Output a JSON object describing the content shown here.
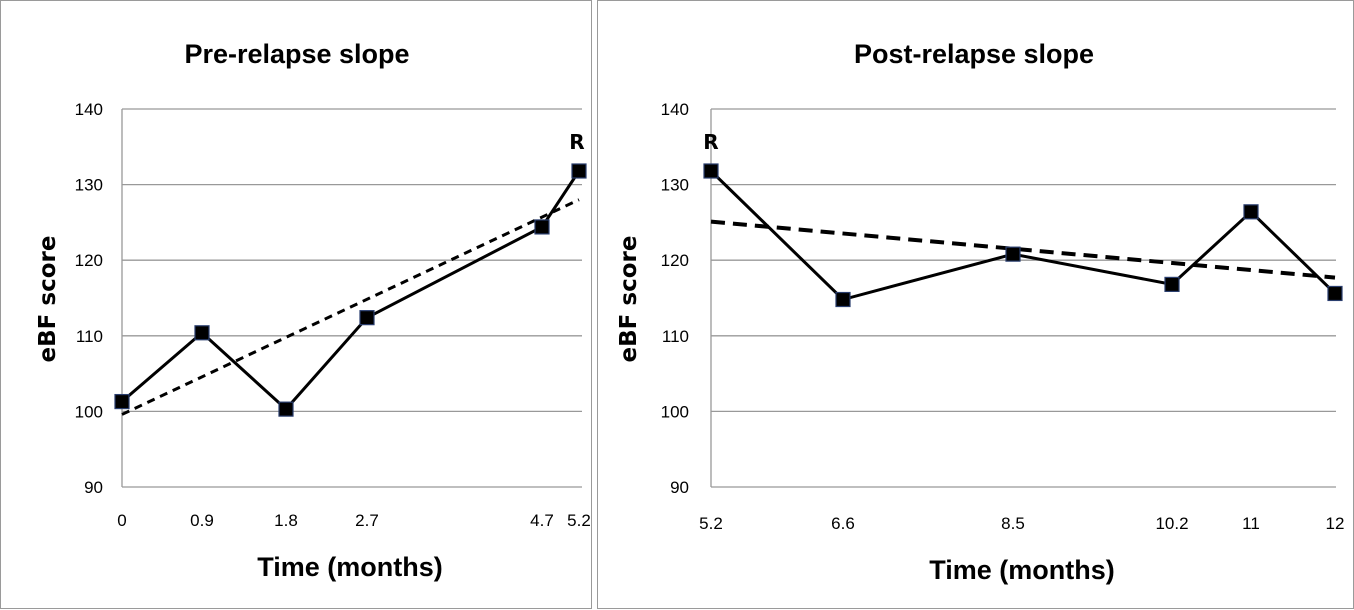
{
  "chart_data": [
    {
      "type": "line",
      "title": "Pre-relapse slope",
      "xlabel": "Time (months)",
      "ylabel": "eBF score",
      "ylim": [
        90,
        140
      ],
      "yticks": [
        "90",
        "100",
        "110",
        "120",
        "130",
        "140"
      ],
      "xticks": [
        "0",
        "0.9",
        "1.8",
        "2.7",
        "4.7",
        "5.2"
      ],
      "grid": "horizontal",
      "series": [
        {
          "x": [
            0,
            0.9,
            1.8,
            2.7,
            4.7,
            5.2
          ],
          "y": [
            101.3,
            110.4,
            100.3,
            112.4,
            124.4,
            131.8
          ]
        }
      ],
      "trendline": {
        "style": "dashed",
        "x": [
          0,
          5.2
        ],
        "y": [
          99.6,
          128.0
        ]
      },
      "annotation": {
        "text": "R",
        "x": 5.2,
        "y": 131.8
      }
    },
    {
      "type": "line",
      "title": "Post-relapse slope",
      "xlabel": "Time (months)",
      "ylabel": "eBF score",
      "ylim": [
        90,
        140
      ],
      "yticks": [
        "90",
        "100",
        "110",
        "120",
        "130",
        "140"
      ],
      "xticks": [
        "5.2",
        "6.6",
        "8.5",
        "10.2",
        "11",
        "12"
      ],
      "grid": "horizontal",
      "series": [
        {
          "x": [
            5.2,
            6.6,
            8.5,
            10.2,
            11,
            12
          ],
          "y": [
            131.8,
            114.8,
            120.8,
            116.8,
            126.4,
            115.6
          ]
        }
      ],
      "trendline": {
        "style": "dashed",
        "x": [
          5.2,
          12
        ],
        "y": [
          125.1,
          117.7
        ]
      },
      "annotation": {
        "text": "R",
        "x": 5.2,
        "y": 131.8
      }
    }
  ]
}
